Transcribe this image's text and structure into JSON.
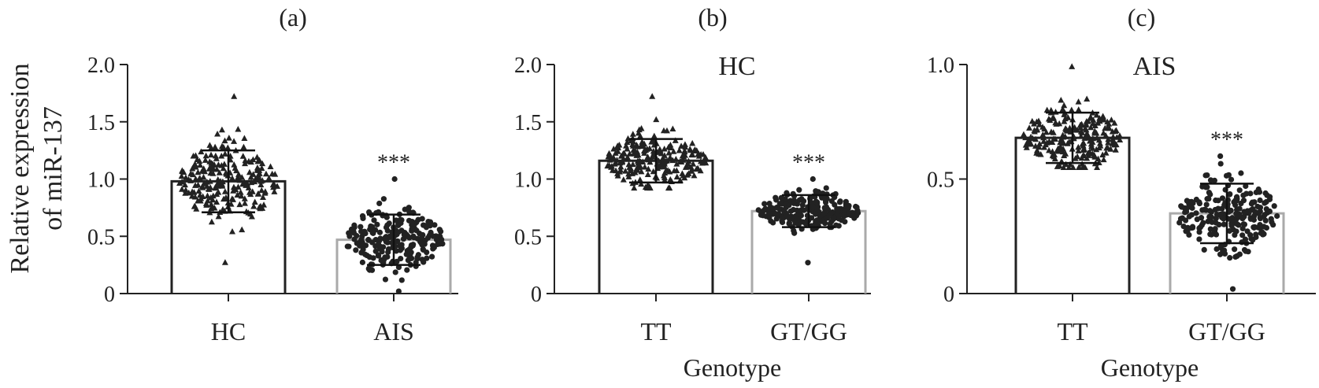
{
  "figure": {
    "ylabel_line1": "Relative expression",
    "ylabel_line2": "of miR-137"
  },
  "chart_data": [
    {
      "type": "bar",
      "panel_label": "(a)",
      "title": "",
      "xlabel": "",
      "ylabel": "Relative expression of miR-137",
      "ylim": [
        0,
        2.0
      ],
      "yticks": [
        "0",
        "0.5",
        "1.0",
        "1.5",
        "2.0"
      ],
      "categories": [
        "HC",
        "AIS"
      ],
      "values": [
        0.98,
        0.47
      ],
      "sd": [
        0.27,
        0.22
      ],
      "point_range": [
        [
          0.27,
          1.72
        ],
        [
          0.02,
          1.0
        ]
      ],
      "point_markers": [
        "triangle",
        "circle"
      ],
      "bar_colors": [
        "#222222",
        "#aaaaaa"
      ],
      "significance": [
        "",
        "***"
      ],
      "grid": false
    },
    {
      "type": "bar",
      "panel_label": "(b)",
      "title": "HC",
      "xlabel": "Genotype",
      "ylabel": "Relative expression of miR-137",
      "ylim": [
        0,
        2.0
      ],
      "yticks": [
        "0",
        "0.5",
        "1.0",
        "1.5",
        "2.0"
      ],
      "categories": [
        "TT",
        "GT/GG"
      ],
      "values": [
        1.16,
        0.72
      ],
      "sd": [
        0.19,
        0.14
      ],
      "point_range": [
        [
          0.92,
          1.72
        ],
        [
          0.27,
          1.0
        ]
      ],
      "point_markers": [
        "triangle",
        "circle"
      ],
      "bar_colors": [
        "#222222",
        "#aaaaaa"
      ],
      "significance": [
        "",
        "***"
      ],
      "grid": false
    },
    {
      "type": "bar",
      "panel_label": "(c)",
      "title": "AIS",
      "xlabel": "Genotype",
      "ylabel": "Relative expression of miR-137",
      "ylim": [
        0,
        1.0
      ],
      "yticks": [
        "0",
        "0.5",
        "1.0"
      ],
      "categories": [
        "TT",
        "GT/GG"
      ],
      "values": [
        0.68,
        0.35
      ],
      "sd": [
        0.11,
        0.13
      ],
      "point_range": [
        [
          0.55,
          0.99
        ],
        [
          0.02,
          0.6
        ]
      ],
      "point_markers": [
        "triangle",
        "circle"
      ],
      "bar_colors": [
        "#222222",
        "#aaaaaa"
      ],
      "significance": [
        "",
        "***"
      ],
      "grid": false
    }
  ]
}
